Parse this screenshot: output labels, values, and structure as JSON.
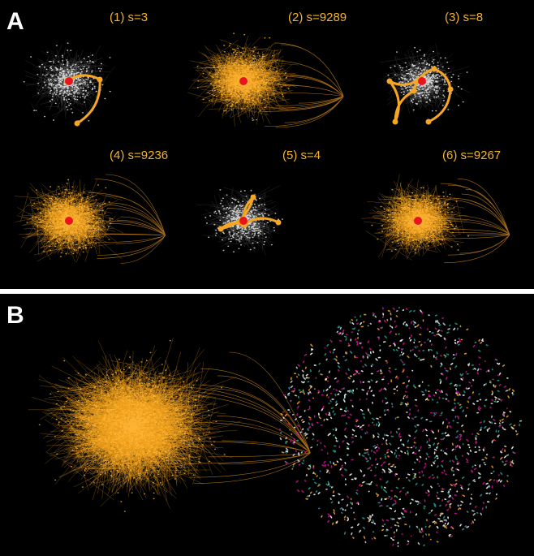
{
  "panels": {
    "A": {
      "letter": "A",
      "subpanels": [
        {
          "label": "(1) s=3"
        },
        {
          "label": "(2) s=9289"
        },
        {
          "label": "(3) s=8"
        },
        {
          "label": "(4) s=9236"
        },
        {
          "label": "(5) s=4"
        },
        {
          "label": "(6) s=9267"
        }
      ]
    },
    "B": {
      "letter": "B"
    }
  }
}
